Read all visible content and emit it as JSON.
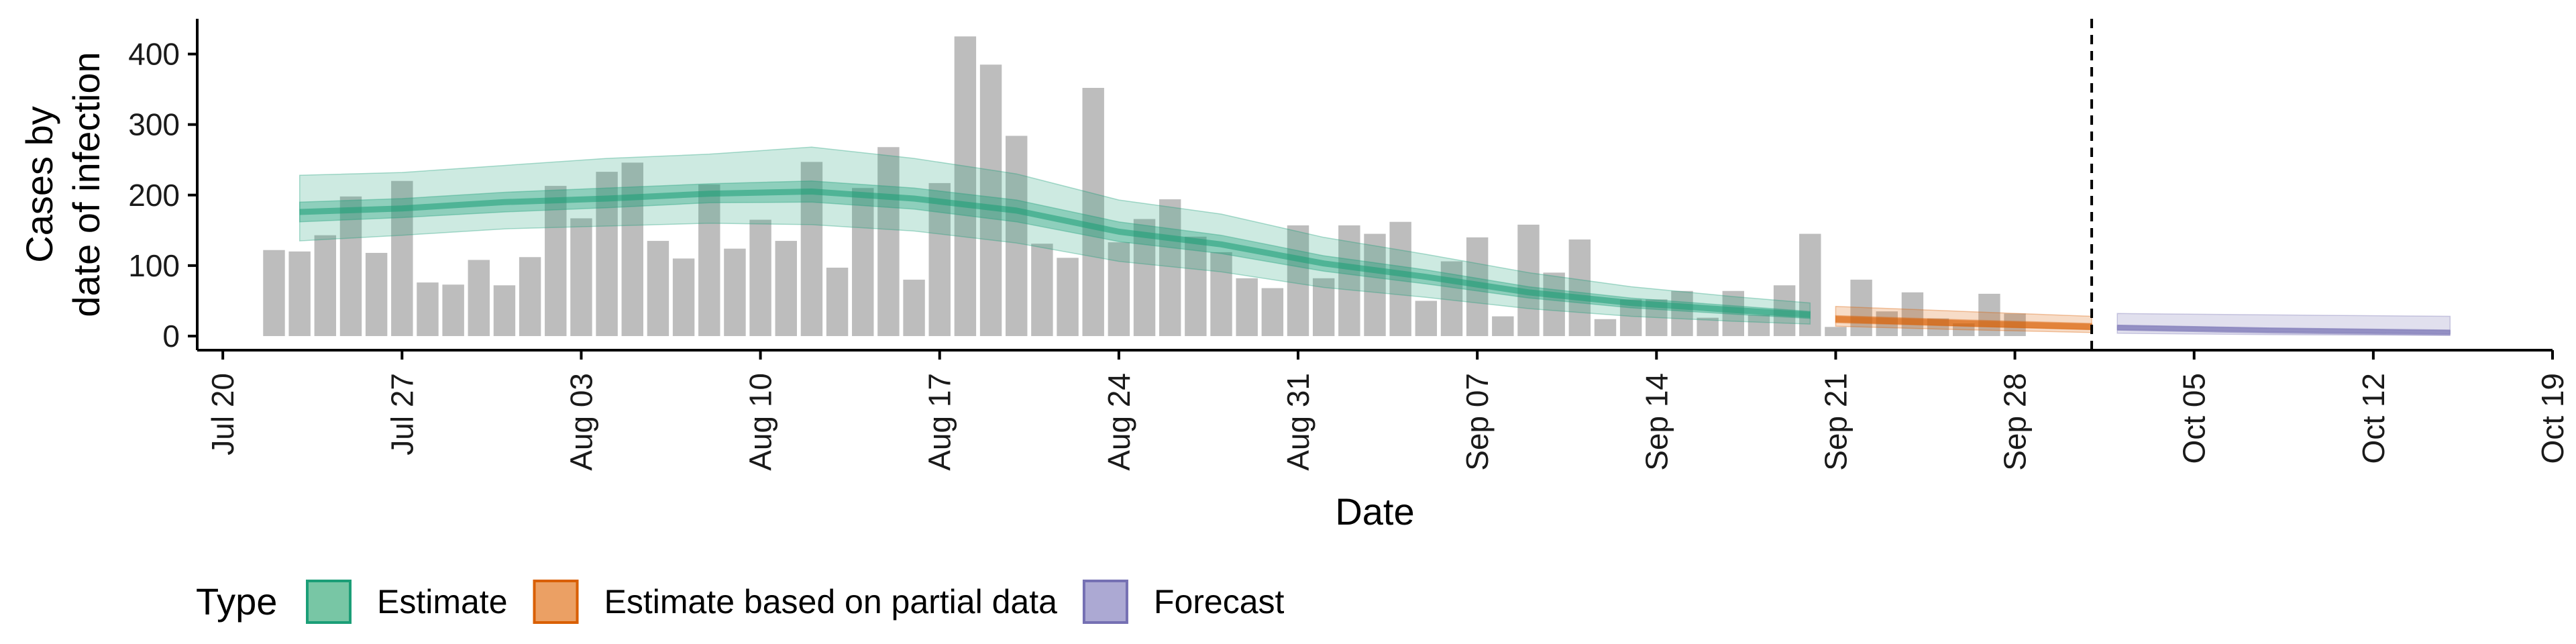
{
  "chart_data": {
    "type": "bar",
    "xlabel": "Date",
    "ylabel_lines": [
      "Cases by",
      "date of infection"
    ],
    "x_range": [
      "2020-07-19",
      "2020-10-19"
    ],
    "ylim": [
      -20,
      450
    ],
    "y_ticks": [
      0,
      100,
      200,
      300,
      400
    ],
    "x_ticks": [
      {
        "date": "2020-07-20",
        "label": "Jul 20"
      },
      {
        "date": "2020-07-27",
        "label": "Jul 27"
      },
      {
        "date": "2020-08-03",
        "label": "Aug 03"
      },
      {
        "date": "2020-08-10",
        "label": "Aug 10"
      },
      {
        "date": "2020-08-17",
        "label": "Aug 17"
      },
      {
        "date": "2020-08-24",
        "label": "Aug 24"
      },
      {
        "date": "2020-08-31",
        "label": "Aug 31"
      },
      {
        "date": "2020-09-07",
        "label": "Sep 07"
      },
      {
        "date": "2020-09-14",
        "label": "Sep 14"
      },
      {
        "date": "2020-09-21",
        "label": "Sep 21"
      },
      {
        "date": "2020-09-28",
        "label": "Sep 28"
      },
      {
        "date": "2020-10-05",
        "label": "Oct 05"
      },
      {
        "date": "2020-10-12",
        "label": "Oct 12"
      },
      {
        "date": "2020-10-19",
        "label": "Oct 19"
      }
    ],
    "bar_color": "#bdbdbd",
    "bars": {
      "start_date": "2020-07-22",
      "values": [
        122,
        120,
        143,
        198,
        118,
        220,
        76,
        73,
        108,
        72,
        112,
        213,
        167,
        233,
        246,
        135,
        110,
        215,
        124,
        165,
        135,
        247,
        97,
        210,
        268,
        80,
        217,
        425,
        385,
        284,
        131,
        111,
        352,
        133,
        166,
        194,
        141,
        119,
        82,
        68,
        157,
        82,
        157,
        145,
        162,
        50,
        106,
        140,
        28,
        158,
        90,
        137,
        24,
        52,
        52,
        64,
        26,
        64,
        30,
        72,
        145,
        13,
        80,
        35,
        62,
        25,
        18,
        60,
        32
      ]
    },
    "vline_date": "2020-10-01",
    "series": [
      {
        "name": "Estimate",
        "color": "#1b9e77",
        "dates": [
          "2020-07-23",
          "2020-07-27",
          "2020-07-31",
          "2020-08-04",
          "2020-08-08",
          "2020-08-12",
          "2020-08-16",
          "2020-08-20",
          "2020-08-24",
          "2020-08-28",
          "2020-09-01",
          "2020-09-05",
          "2020-09-09",
          "2020-09-13",
          "2020-09-17",
          "2020-09-20"
        ],
        "median": [
          176,
          181,
          190,
          195,
          202,
          205,
          195,
          178,
          148,
          130,
          103,
          84,
          62,
          47,
          37,
          30
        ],
        "inner_low": [
          162,
          168,
          176,
          182,
          189,
          190,
          180,
          162,
          134,
          117,
          92,
          74,
          54,
          40,
          31,
          25
        ],
        "inner_high": [
          190,
          195,
          204,
          210,
          216,
          220,
          210,
          193,
          162,
          143,
          114,
          94,
          70,
          54,
          43,
          35
        ],
        "outer_low": [
          135,
          143,
          152,
          156,
          160,
          158,
          149,
          132,
          106,
          91,
          69,
          55,
          39,
          28,
          21,
          17
        ],
        "outer_high": [
          228,
          232,
          242,
          252,
          258,
          268,
          252,
          230,
          193,
          173,
          140,
          116,
          90,
          70,
          56,
          47
        ]
      },
      {
        "name": "Estimate based on partial data",
        "color": "#d95f02",
        "dates": [
          "2020-09-21",
          "2020-09-26",
          "2020-10-01"
        ],
        "median": [
          24,
          18,
          13
        ],
        "inner_low": [
          19,
          14,
          9
        ],
        "inner_high": [
          29,
          23,
          18
        ],
        "outer_low": [
          14,
          9,
          5
        ],
        "outer_high": [
          42,
          35,
          28
        ]
      },
      {
        "name": "Forecast",
        "color": "#7570b3",
        "dates": [
          "2020-10-02",
          "2020-10-08",
          "2020-10-15"
        ],
        "median": [
          12,
          8,
          5
        ],
        "inner_low": [
          9,
          6,
          3
        ],
        "inner_high": [
          15,
          11,
          8
        ],
        "outer_low": [
          4,
          2,
          1
        ],
        "outer_high": [
          32,
          30,
          28
        ]
      }
    ],
    "legend": {
      "title": "Type",
      "position": "bottom",
      "entries": [
        {
          "label": "Estimate",
          "fill": "#78c6a5",
          "border": "#1b9e77"
        },
        {
          "label": "Estimate based on partial data",
          "fill": "#eba064",
          "border": "#d95f02"
        },
        {
          "label": "Forecast",
          "fill": "#aca9d3",
          "border": "#7570b3"
        }
      ]
    }
  }
}
